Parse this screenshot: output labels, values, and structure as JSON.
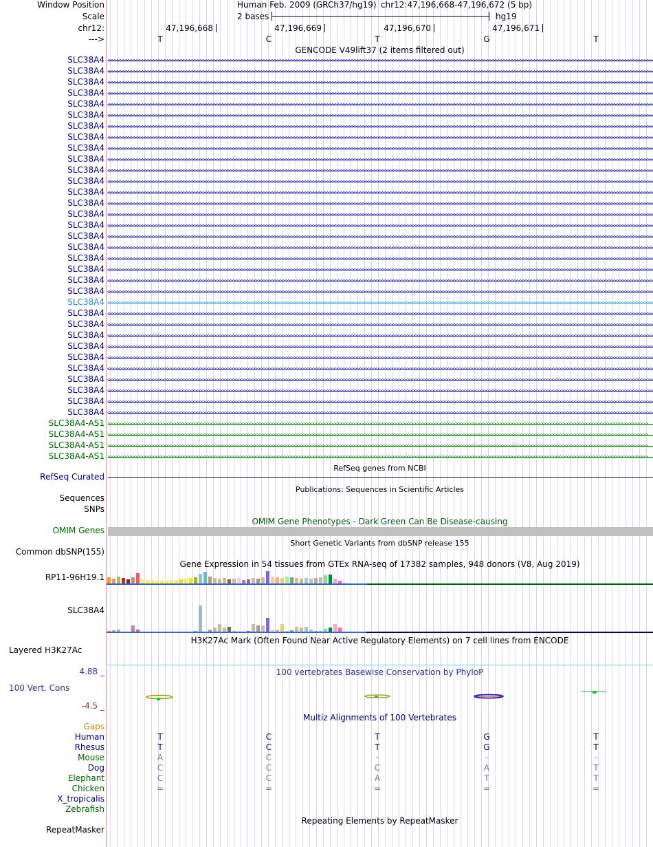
{
  "header": {
    "window_position_label": "Window Position",
    "scale_label": "Scale",
    "chrom_label": "chr12:",
    "strand_label": "--->",
    "assembly_title": "Human Feb. 2009 (GRCh37/hg19)",
    "position_text": "chr12:47,196,668-47,196,672 (5 bp)",
    "scale_text": "2 bases",
    "db_text": "hg19",
    "ticks": [
      "47,196,668",
      "47,196,669",
      "47,196,670",
      "47,196,671"
    ],
    "bases": [
      "T",
      "C",
      "T",
      "G",
      "T"
    ]
  },
  "gencode": {
    "title": "GENCODE V49lift37 (2 items filtered out)",
    "gene_name": "SLC38A4",
    "gene_count": 33,
    "highlight_index": 22,
    "as_name": "SLC38A4-AS1",
    "as_count": 4,
    "rev_arrows": "<<<<<<<<<<<<<<<<<<<<<<<<<<<<<<<<<<<<<<<<<<<<<<<<<<<<<<<<<<<<<<<<<<<<<<<<<<<<<<<<<<<<<<<<<<<<<<<<<<<<<<<<<<<<<<<<<<<<<<<<<<<<<<<<<<<<<<<<<<<<<<<<<<<<<<<<<<<<<<<<<<<<<<<<<<<<<<<<<<<<<<<<<<<<<<<<<<<<<<",
    "fwd_arrows": ">>>>>>>>>>>>>>>>>>>>>>>>>>>>>>>>>>>>>>>>>>>>>>>>>>>>>>>>>>>>>>>>>>>>>>>>>>>>>>>>>>>>>>>>>>>>>>>>>>>>>>>>>>>>>>>>>>>>>>>>>>>>>>>>>>>>>>>>>>>>>>>>>>>>>>>>>>>>>>>>>>>>>>>>>>>>>>>>>>>>>>>>>>>>>>>>>>>>"
  },
  "refseq": {
    "label": "RefSeq Curated",
    "title": "RefSeq genes from NCBI"
  },
  "publications": {
    "label": "Sequences",
    "title": "Publications: Sequences in Scientific Articles"
  },
  "snps": {
    "label": "SNPs"
  },
  "omim": {
    "label": "OMIM Genes",
    "title": "OMIM Gene Phenotypes - Dark Green Can Be Disease-causing"
  },
  "dbsnp": {
    "label": "Common dbSNP(155)",
    "title": "Short Genetic Variants from dbSNP release 155"
  },
  "gtex": {
    "title": "Gene Expression in 54 tissues from GTEx RNA-seq of 17382 samples, 948 donors (V8, Aug 2019)",
    "gene1": "RP11-96H19.1",
    "gene2": "SLC38A4",
    "colors": [
      "#ff9933",
      "#ff8866",
      "#aabb66",
      "#cc2222",
      "#882222",
      "#cc8888",
      "#ff5555",
      "#ffee44",
      "#ffee44",
      "#ffee44",
      "#ffee44",
      "#ffee44",
      "#ffee44",
      "#ffee44",
      "#ffee44",
      "#ffdd00",
      "#ffee44",
      "#eeee00",
      "#aabb00",
      "#99bbcc",
      "#66bbcc",
      "#bb9988",
      "#ccbb99",
      "#ccbb99",
      "#ccbb99",
      "#886644",
      "#ccbb99",
      "#ffccee",
      "#aa77dd",
      "#996699",
      "#ccbbaa",
      "#aa9988",
      "#ccbbaa",
      "#7766ee",
      "#ffcc99",
      "#ffaa88",
      "#eecc77",
      "#aaeeaa",
      "#66bb66",
      "#ddbb99",
      "#ccbb88",
      "#99ccdd",
      "#ccbbaa",
      "#bbaa99",
      "#ccbbaa",
      "#88dd88",
      "#008844",
      "#ffaaaa",
      "#ff66bb",
      "#dddddd",
      "#ffaaaa",
      "#bbaaee",
      "#aa55cc",
      "#ccccff"
    ],
    "values1": [
      0.55,
      0.45,
      0.6,
      0.5,
      0.4,
      0.55,
      0.85,
      0.4,
      0.35,
      0.35,
      0.3,
      0.3,
      0.3,
      0.35,
      0.35,
      0.4,
      0.45,
      0.5,
      0.55,
      0.8,
      0.95,
      0.6,
      0.5,
      0.45,
      0.5,
      0.4,
      0.45,
      0.5,
      0.35,
      0.4,
      0.5,
      0.45,
      0.55,
      1.0,
      0.6,
      0.55,
      0.5,
      0.6,
      0.55,
      0.5,
      0.45,
      0.5,
      0.45,
      0.5,
      0.55,
      0.7,
      0.75,
      0.45,
      0.3,
      0.15,
      0.12,
      0.1,
      0.1,
      0.1
    ],
    "values2": [
      0.05,
      0.06,
      0.08,
      0.02,
      0.02,
      0.16,
      0.08,
      0.02,
      0.02,
      0.02,
      0.02,
      0.02,
      0.02,
      0.02,
      0.02,
      0.02,
      0.02,
      0.02,
      0.05,
      0.6,
      0.02,
      0.08,
      0.12,
      0.2,
      0.12,
      0.14,
      0.05,
      0.05,
      0.02,
      0.05,
      0.19,
      0.16,
      0.16,
      0.34,
      0.08,
      0.07,
      0.2,
      0.04,
      0.06,
      0.13,
      0.12,
      0.13,
      0.08,
      0.05,
      0.04,
      0.09,
      0.12,
      0.19,
      0.12,
      0.02,
      0.02,
      0.02,
      0.02,
      0.02
    ]
  },
  "h3k27ac": {
    "label": "Layered H3K27Ac",
    "title": "H3K27Ac Mark (Often Found Near Active Regulatory Elements) on 7 cell lines from ENCODE"
  },
  "cons": {
    "label": "100 Vert. Cons",
    "max": "4.88 _",
    "min": "-4.5 _",
    "title": "100 vertebrates Basewise Conservation by PhyloP"
  },
  "multiz": {
    "title": "Multiz Alignments of 100 Vertebrates",
    "gaps_label": "Gaps",
    "species": [
      {
        "name": "Human",
        "color": "#000080",
        "bases": [
          "T",
          "C",
          "T",
          "G",
          "T"
        ],
        "base_color": "#000066"
      },
      {
        "name": "Rhesus",
        "color": "#000080",
        "bases": [
          "T",
          "C",
          "T",
          "G",
          "T"
        ],
        "base_color": "#000066"
      },
      {
        "name": "Mouse",
        "color": "#006400",
        "bases": [
          "A",
          "C",
          "-",
          "-",
          "-"
        ],
        "base_color": "#7777aa"
      },
      {
        "name": "Dog",
        "color": "#000080",
        "bases": [
          "C",
          "C",
          "C",
          "A",
          "T"
        ],
        "base_color": "#7777aa"
      },
      {
        "name": "Elephant",
        "color": "#006400",
        "bases": [
          "C",
          "C",
          "A",
          "T",
          "T"
        ],
        "base_color": "#7777aa"
      },
      {
        "name": "Chicken",
        "color": "#006400",
        "bases": [
          "=",
          "=",
          "=",
          "=",
          "="
        ],
        "base_color": "#7777aa"
      },
      {
        "name": "X_tropicalis",
        "color": "#000080",
        "bases": [
          "",
          "",
          "",
          "",
          ""
        ],
        "base_color": "#7777aa"
      },
      {
        "name": "Zebrafish",
        "color": "#006400",
        "bases": [
          "",
          "",
          "",
          "",
          ""
        ],
        "base_color": "#7777aa"
      }
    ]
  },
  "repeatmasker": {
    "label": "RepeatMasker",
    "title": "Repeating Elements by RepeatMasker"
  }
}
